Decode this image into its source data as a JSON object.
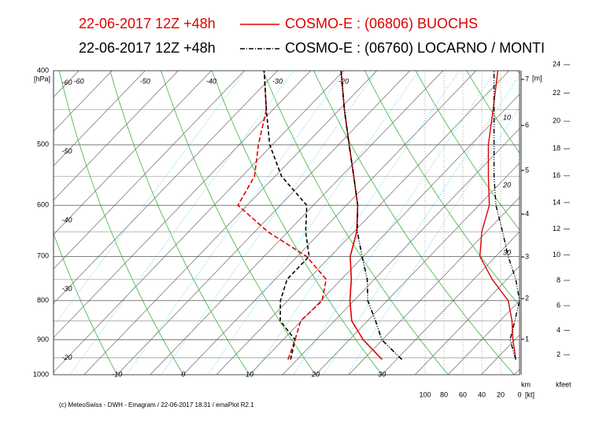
{
  "chart_data": {
    "type": "emagram",
    "run": "22-06-2017  12Z +48h",
    "footer": "(c) MeteoSwiss - DWH - Emagram / 22-06-2017  18:31  / emaPlot R2.1",
    "pressure_unit": "[hPa]",
    "ylim": [
      1000,
      400
    ],
    "log_y": true,
    "yticks": [
      400,
      500,
      600,
      700,
      800,
      900,
      1000
    ],
    "xlim": [
      -19.6,
      50.8
    ],
    "xticks": [
      -10,
      0,
      10,
      20,
      30
    ],
    "top_xticks": [
      -60,
      -50,
      -40,
      -30,
      -20
    ],
    "left_labels": [
      -60,
      -50,
      -40,
      -30,
      -20
    ],
    "height_unit": "[m]",
    "height_ticks": [
      1,
      2,
      3,
      4,
      5,
      6,
      7
    ],
    "height_axis_label": "km",
    "kfeet_label": "kfeet",
    "kfeet_ticks": [
      2,
      4,
      6,
      8,
      10,
      12,
      14,
      16,
      18,
      20,
      22,
      24
    ],
    "wind_unit": "[kt]",
    "wind_lim": [
      0,
      100
    ],
    "wind_ticks": [
      100,
      80,
      60,
      40,
      20,
      0
    ],
    "speed_labels": [
      10,
      20,
      30
    ],
    "grid": true,
    "pressures": [
      955,
      900,
      850,
      800,
      750,
      700,
      650,
      600,
      550,
      500,
      450,
      400
    ],
    "series": [
      {
        "name": "COSMO-E : (06806)  BUOCHS",
        "color": "#e00000",
        "style": "solid",
        "temperature": [
          27.8,
          22.1,
          17.6,
          14.4,
          11.5,
          8.0,
          5.4,
          1.7,
          -3.1,
          -8.4,
          -14.2,
          -20.4
        ],
        "dewpoint": [
          13.6,
          11.8,
          9.9,
          10.2,
          7.7,
          1.4,
          -8.0,
          -16.4,
          -18.1,
          -22.1,
          -26.0,
          -32.0
        ],
        "wind_speed": [
          4,
          7,
          8,
          12,
          29,
          42,
          40,
          32,
          33,
          33,
          28,
          23
        ]
      },
      {
        "name": "COSMO-E : (06760)  LOCARNO / MONTI",
        "color": "#000000",
        "style": "dashdot",
        "temperature": [
          30.8,
          24.9,
          21.2,
          17.1,
          13.9,
          9.8,
          5.5,
          1.7,
          -3.1,
          -8.4,
          -14.2,
          -20.4
        ],
        "dewpoint": [
          14.0,
          11.8,
          6.8,
          3.9,
          1.8,
          1.8,
          -2.3,
          -6.0,
          -14.0,
          -20.4,
          -26.0,
          -32.0
        ],
        "wind_speed": [
          4,
          10,
          5,
          0,
          4,
          12,
          18,
          25,
          27,
          27,
          27,
          27
        ]
      }
    ]
  }
}
